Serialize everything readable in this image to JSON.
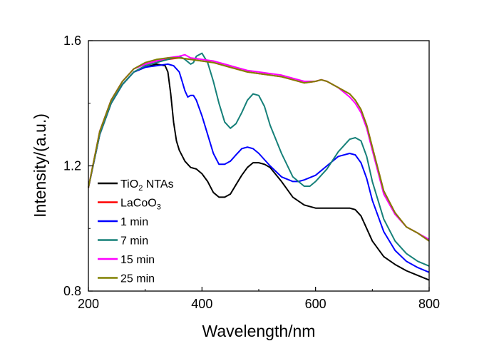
{
  "chart_data": {
    "type": "line",
    "xlabel": "Wavelength/nm",
    "ylabel": "Intensity/(a.u.)",
    "xlim": [
      200,
      800
    ],
    "ylim": [
      0.8,
      1.6
    ],
    "xticks": [
      "200",
      "400",
      "600",
      "800"
    ],
    "xtick_values": [
      200,
      400,
      600,
      800
    ],
    "yticks": [
      "0.8",
      "1.2",
      "1.6"
    ],
    "ytick_values": [
      0.8,
      1.2,
      1.6
    ],
    "grid": false,
    "legend_position": "bottom-left",
    "series": [
      {
        "name": "TiO2 NTAs",
        "name_main": "TiO",
        "name_sub": "2",
        "name_tail": " NTAs",
        "color": "#000000",
        "points": [
          [
            200,
            1.13
          ],
          [
            220,
            1.3
          ],
          [
            240,
            1.4
          ],
          [
            260,
            1.46
          ],
          [
            280,
            1.5
          ],
          [
            300,
            1.515
          ],
          [
            320,
            1.525
          ],
          [
            335,
            1.52
          ],
          [
            340,
            1.5
          ],
          [
            345,
            1.43
          ],
          [
            350,
            1.34
          ],
          [
            355,
            1.28
          ],
          [
            360,
            1.25
          ],
          [
            370,
            1.215
          ],
          [
            380,
            1.195
          ],
          [
            390,
            1.19
          ],
          [
            400,
            1.175
          ],
          [
            410,
            1.15
          ],
          [
            420,
            1.115
          ],
          [
            430,
            1.1
          ],
          [
            440,
            1.1
          ],
          [
            450,
            1.11
          ],
          [
            460,
            1.14
          ],
          [
            470,
            1.17
          ],
          [
            480,
            1.195
          ],
          [
            490,
            1.21
          ],
          [
            500,
            1.21
          ],
          [
            510,
            1.205
          ],
          [
            520,
            1.195
          ],
          [
            540,
            1.15
          ],
          [
            560,
            1.1
          ],
          [
            580,
            1.075
          ],
          [
            600,
            1.065
          ],
          [
            620,
            1.065
          ],
          [
            640,
            1.065
          ],
          [
            660,
            1.065
          ],
          [
            670,
            1.06
          ],
          [
            680,
            1.04
          ],
          [
            690,
            1.0
          ],
          [
            700,
            0.96
          ],
          [
            720,
            0.91
          ],
          [
            740,
            0.885
          ],
          [
            760,
            0.865
          ],
          [
            780,
            0.85
          ],
          [
            800,
            0.835
          ]
        ]
      },
      {
        "name": "LaCoO3",
        "name_main": "LaCoO",
        "name_sub": "3",
        "name_tail": "",
        "color": "#ff0000",
        "points": [
          [
            200,
            1.13
          ],
          [
            220,
            1.31
          ],
          [
            240,
            1.41
          ],
          [
            260,
            1.47
          ],
          [
            280,
            1.51
          ],
          [
            300,
            1.525
          ],
          [
            320,
            1.535
          ],
          [
            340,
            1.54
          ],
          [
            360,
            1.545
          ],
          [
            380,
            1.54
          ],
          [
            400,
            1.535
          ],
          [
            420,
            1.53
          ],
          [
            440,
            1.52
          ],
          [
            460,
            1.51
          ],
          [
            480,
            1.5
          ],
          [
            500,
            1.495
          ],
          [
            520,
            1.49
          ],
          [
            540,
            1.485
          ],
          [
            560,
            1.475
          ],
          [
            580,
            1.465
          ],
          [
            600,
            1.47
          ],
          [
            610,
            1.475
          ],
          [
            620,
            1.47
          ],
          [
            640,
            1.45
          ],
          [
            660,
            1.43
          ],
          [
            670,
            1.41
          ],
          [
            680,
            1.38
          ],
          [
            690,
            1.33
          ],
          [
            700,
            1.26
          ],
          [
            710,
            1.19
          ],
          [
            720,
            1.12
          ],
          [
            740,
            1.05
          ],
          [
            760,
            1.005
          ],
          [
            780,
            0.985
          ],
          [
            800,
            0.96
          ]
        ]
      },
      {
        "name": "1 min",
        "name_main": "  1 min",
        "name_sub": "",
        "name_tail": "",
        "color": "#0000ff",
        "points": [
          [
            200,
            1.13
          ],
          [
            220,
            1.3
          ],
          [
            240,
            1.4
          ],
          [
            260,
            1.46
          ],
          [
            280,
            1.5
          ],
          [
            300,
            1.515
          ],
          [
            320,
            1.52
          ],
          [
            340,
            1.525
          ],
          [
            350,
            1.52
          ],
          [
            360,
            1.5
          ],
          [
            365,
            1.47
          ],
          [
            370,
            1.44
          ],
          [
            375,
            1.42
          ],
          [
            380,
            1.425
          ],
          [
            385,
            1.425
          ],
          [
            390,
            1.41
          ],
          [
            400,
            1.36
          ],
          [
            410,
            1.3
          ],
          [
            420,
            1.24
          ],
          [
            430,
            1.205
          ],
          [
            440,
            1.205
          ],
          [
            450,
            1.215
          ],
          [
            460,
            1.235
          ],
          [
            470,
            1.255
          ],
          [
            480,
            1.26
          ],
          [
            490,
            1.255
          ],
          [
            500,
            1.24
          ],
          [
            520,
            1.2
          ],
          [
            540,
            1.165
          ],
          [
            560,
            1.15
          ],
          [
            570,
            1.15
          ],
          [
            580,
            1.155
          ],
          [
            600,
            1.17
          ],
          [
            620,
            1.2
          ],
          [
            640,
            1.23
          ],
          [
            660,
            1.24
          ],
          [
            670,
            1.235
          ],
          [
            680,
            1.21
          ],
          [
            690,
            1.16
          ],
          [
            700,
            1.09
          ],
          [
            720,
            0.99
          ],
          [
            740,
            0.93
          ],
          [
            760,
            0.895
          ],
          [
            780,
            0.875
          ],
          [
            800,
            0.86
          ]
        ]
      },
      {
        "name": "7 min",
        "name_main": "  7 min",
        "name_sub": "",
        "name_tail": "",
        "color": "#168079",
        "points": [
          [
            200,
            1.13
          ],
          [
            220,
            1.3
          ],
          [
            240,
            1.4
          ],
          [
            260,
            1.46
          ],
          [
            280,
            1.5
          ],
          [
            300,
            1.52
          ],
          [
            320,
            1.53
          ],
          [
            340,
            1.54
          ],
          [
            360,
            1.55
          ],
          [
            370,
            1.54
          ],
          [
            380,
            1.525
          ],
          [
            385,
            1.53
          ],
          [
            390,
            1.55
          ],
          [
            400,
            1.56
          ],
          [
            410,
            1.53
          ],
          [
            420,
            1.47
          ],
          [
            430,
            1.4
          ],
          [
            440,
            1.34
          ],
          [
            450,
            1.32
          ],
          [
            460,
            1.335
          ],
          [
            470,
            1.37
          ],
          [
            480,
            1.41
          ],
          [
            490,
            1.43
          ],
          [
            500,
            1.425
          ],
          [
            510,
            1.39
          ],
          [
            520,
            1.33
          ],
          [
            540,
            1.24
          ],
          [
            560,
            1.165
          ],
          [
            580,
            1.135
          ],
          [
            590,
            1.135
          ],
          [
            600,
            1.15
          ],
          [
            620,
            1.19
          ],
          [
            640,
            1.245
          ],
          [
            660,
            1.285
          ],
          [
            670,
            1.29
          ],
          [
            680,
            1.28
          ],
          [
            690,
            1.23
          ],
          [
            700,
            1.15
          ],
          [
            720,
            1.03
          ],
          [
            740,
            0.96
          ],
          [
            760,
            0.92
          ],
          [
            780,
            0.895
          ],
          [
            800,
            0.88
          ]
        ]
      },
      {
        "name": "15 min",
        "name_main": "15 min",
        "name_sub": "",
        "name_tail": "",
        "color": "#ff00ff",
        "points": [
          [
            200,
            1.13
          ],
          [
            220,
            1.31
          ],
          [
            240,
            1.41
          ],
          [
            260,
            1.47
          ],
          [
            280,
            1.51
          ],
          [
            300,
            1.525
          ],
          [
            320,
            1.535
          ],
          [
            340,
            1.545
          ],
          [
            360,
            1.55
          ],
          [
            370,
            1.555
          ],
          [
            380,
            1.545
          ],
          [
            400,
            1.54
          ],
          [
            420,
            1.535
          ],
          [
            440,
            1.525
          ],
          [
            460,
            1.515
          ],
          [
            480,
            1.505
          ],
          [
            500,
            1.5
          ],
          [
            520,
            1.495
          ],
          [
            540,
            1.49
          ],
          [
            560,
            1.48
          ],
          [
            580,
            1.47
          ],
          [
            600,
            1.47
          ],
          [
            610,
            1.475
          ],
          [
            620,
            1.47
          ],
          [
            640,
            1.45
          ],
          [
            660,
            1.42
          ],
          [
            670,
            1.4
          ],
          [
            680,
            1.37
          ],
          [
            690,
            1.32
          ],
          [
            700,
            1.25
          ],
          [
            710,
            1.18
          ],
          [
            720,
            1.11
          ],
          [
            740,
            1.045
          ],
          [
            760,
            1.005
          ],
          [
            780,
            0.985
          ],
          [
            800,
            0.965
          ]
        ]
      },
      {
        "name": "25 min",
        "name_main": "25 min",
        "name_sub": "",
        "name_tail": "",
        "color": "#808000",
        "points": [
          [
            200,
            1.13
          ],
          [
            220,
            1.31
          ],
          [
            240,
            1.41
          ],
          [
            260,
            1.47
          ],
          [
            280,
            1.51
          ],
          [
            300,
            1.53
          ],
          [
            320,
            1.54
          ],
          [
            340,
            1.545
          ],
          [
            360,
            1.545
          ],
          [
            380,
            1.54
          ],
          [
            400,
            1.535
          ],
          [
            420,
            1.53
          ],
          [
            440,
            1.52
          ],
          [
            460,
            1.51
          ],
          [
            480,
            1.5
          ],
          [
            500,
            1.495
          ],
          [
            520,
            1.49
          ],
          [
            540,
            1.485
          ],
          [
            560,
            1.475
          ],
          [
            580,
            1.465
          ],
          [
            600,
            1.47
          ],
          [
            610,
            1.475
          ],
          [
            620,
            1.47
          ],
          [
            640,
            1.45
          ],
          [
            660,
            1.43
          ],
          [
            670,
            1.41
          ],
          [
            680,
            1.38
          ],
          [
            690,
            1.33
          ],
          [
            700,
            1.26
          ],
          [
            710,
            1.19
          ],
          [
            720,
            1.12
          ],
          [
            740,
            1.05
          ],
          [
            760,
            1.005
          ],
          [
            780,
            0.985
          ],
          [
            800,
            0.96
          ]
        ]
      }
    ]
  }
}
